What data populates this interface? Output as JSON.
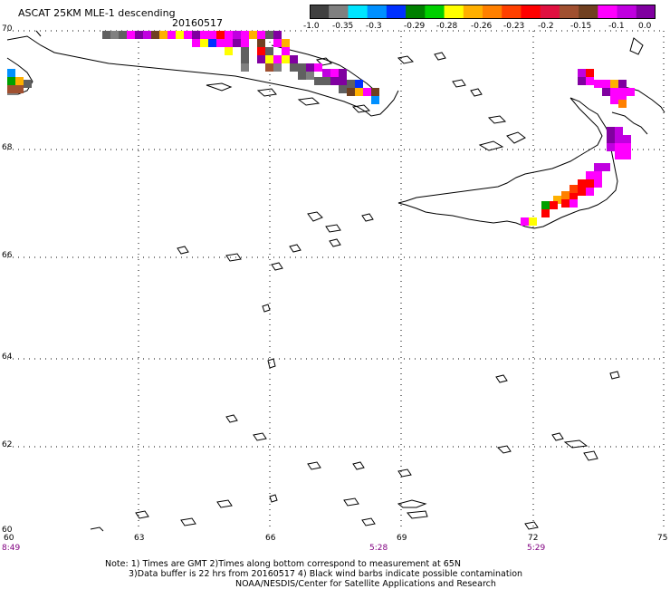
{
  "header": {
    "title": "ASCAT 25KM MLE-1 descending",
    "date": "20160517"
  },
  "colorbar": {
    "colors": [
      "#404040",
      "#808080",
      "#00e5ff",
      "#0090ff",
      "#0030ff",
      "#008000",
      "#00d000",
      "#ffff00",
      "#ffb000",
      "#ff8000",
      "#ff4000",
      "#ff0000",
      "#e01040",
      "#a05030",
      "#704020",
      "#ff00ff",
      "#c000e0",
      "#8000a0"
    ],
    "labels": [
      "-1.0",
      "-0.35",
      "-0.3",
      "-0.29",
      "-0.28",
      "-0.26",
      "-0.23",
      "-0.2",
      "-0.15",
      "-0.1",
      "0.0"
    ]
  },
  "map": {
    "lat_labels": [
      "70",
      "68",
      "66",
      "64",
      "62",
      "60"
    ],
    "lon_labels": [
      "60",
      "63",
      "66",
      "69",
      "72",
      "75"
    ],
    "time_labels": [
      "8:49",
      "5:28",
      "5:29"
    ]
  },
  "notes": {
    "line1": "Note: 1) Times are GMT 2)Times along bottom correspond to measurement at 65N",
    "line2": "3)Data buffer is 22 hrs from 20160517 4) Black wind barbs indicate possible contamination",
    "line3": "NOAA/NESDIS/Center for Satellite Applications and Research"
  }
}
